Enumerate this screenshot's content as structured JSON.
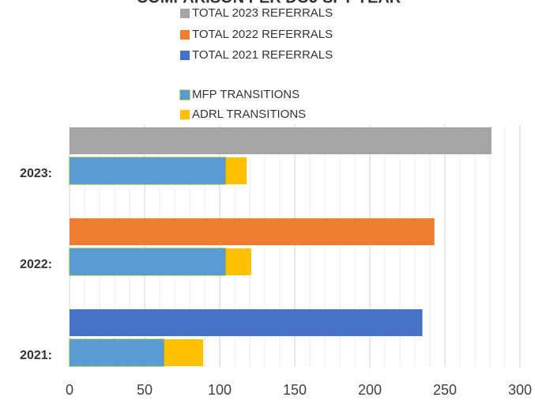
{
  "chart_data": {
    "type": "bar",
    "orientation": "horizontal",
    "title": "COMPARISON PER DOJ SFY YEAR",
    "categories": [
      "2023:",
      "2022:",
      "2021:"
    ],
    "series": [
      {
        "name": "TOTAL 2023 REFERRALS",
        "color": "#a5a5a5",
        "values": [
          281,
          null,
          null
        ]
      },
      {
        "name": "TOTAL 2022 REFERRALS",
        "color": "#ed7d31",
        "values": [
          null,
          243,
          null
        ]
      },
      {
        "name": "TOTAL 2021 REFERRALS",
        "color": "#4472c4",
        "values": [
          null,
          null,
          235
        ]
      },
      {
        "name": "MFP TRANSITIONS",
        "color": "#5b9bd5",
        "stacked": true,
        "values": [
          104,
          104,
          63
        ]
      },
      {
        "name": "ADRL TRANSITIONS",
        "color": "#ffc000",
        "stacked": true,
        "values": [
          14,
          17,
          26
        ]
      }
    ],
    "xlim": [
      0,
      300
    ],
    "xticks": [
      0,
      50,
      100,
      150,
      200,
      250,
      300
    ],
    "grid": true
  }
}
